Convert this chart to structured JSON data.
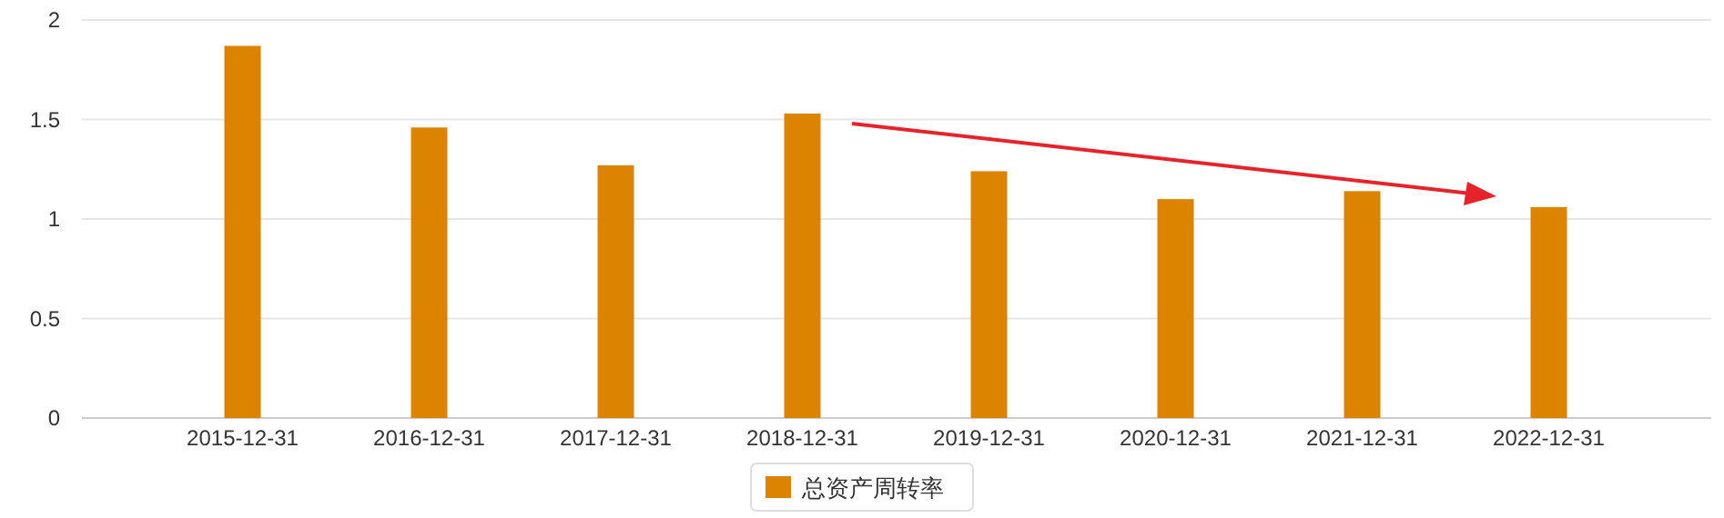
{
  "chart_data": {
    "type": "bar",
    "categories": [
      "2015-12-31",
      "2016-12-31",
      "2017-12-31",
      "2018-12-31",
      "2019-12-31",
      "2020-12-31",
      "2021-12-31",
      "2022-12-31"
    ],
    "series": [
      {
        "name": "总资产周转率",
        "color": "#dc8400",
        "values": [
          1.87,
          1.46,
          1.27,
          1.53,
          1.24,
          1.1,
          1.14,
          1.06
        ]
      }
    ],
    "ylim": [
      0,
      2
    ],
    "yticks": [
      0,
      0.5,
      1,
      1.5,
      2
    ],
    "grid": "y",
    "legend": "bottom"
  }
}
